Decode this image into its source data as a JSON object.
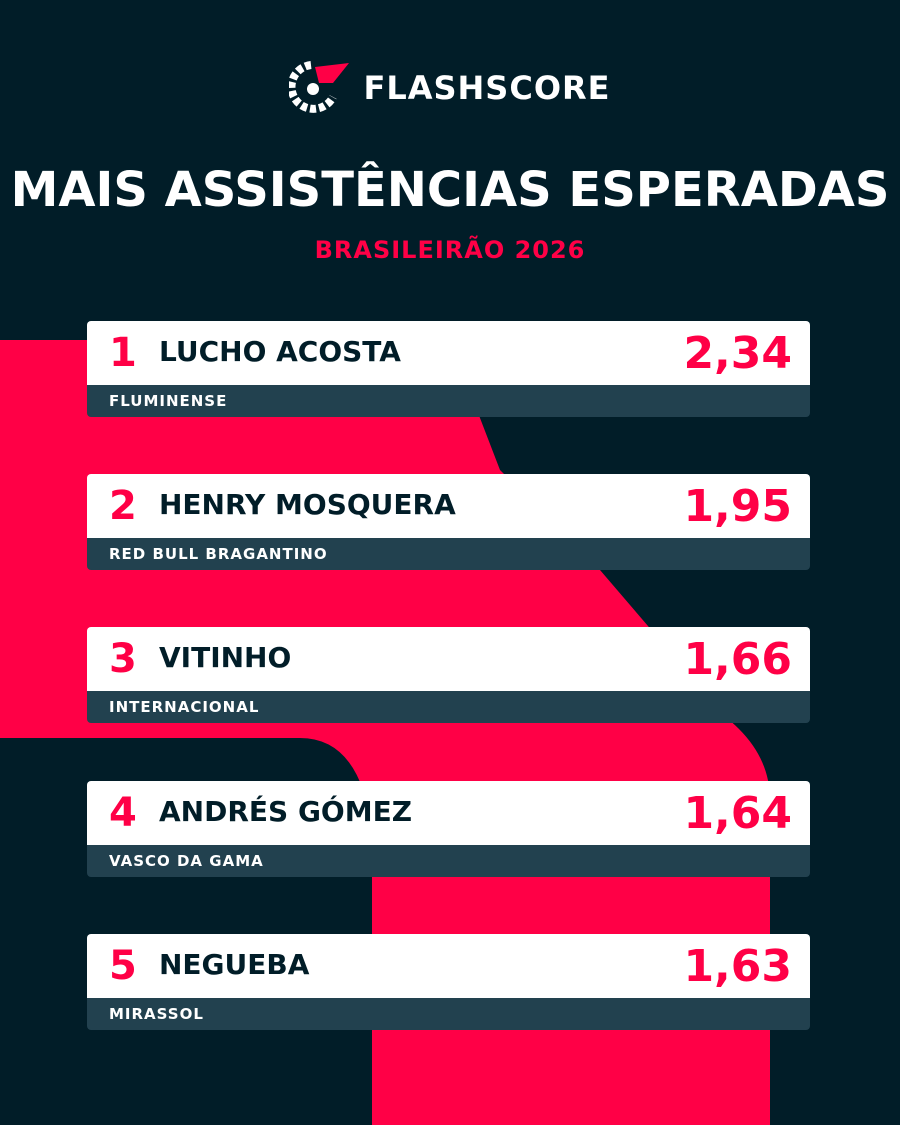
{
  "brand": {
    "logo_text": "FLASHSCORE",
    "logo_icon": "flashscore-logo-icon"
  },
  "header": {
    "title": "MAIS ASSISTÊNCIAS ESPERADAS",
    "subtitle": "BRASILEIRÃO 2026"
  },
  "colors": {
    "background": "#011d28",
    "accent": "#ff0046",
    "card": "#ffffff",
    "team_bar": "#22414f"
  },
  "ranking": [
    {
      "rank": "1",
      "name": "LUCHO ACOSTA",
      "team": "FLUMINENSE",
      "value": "2,34"
    },
    {
      "rank": "2",
      "name": "HENRY MOSQUERA",
      "team": "RED BULL BRAGANTINO",
      "value": "1,95"
    },
    {
      "rank": "3",
      "name": "VITINHO",
      "team": "INTERNACIONAL",
      "value": "1,66"
    },
    {
      "rank": "4",
      "name": "ANDRÉS GÓMEZ",
      "team": "VASCO DA GAMA",
      "value": "1,64"
    },
    {
      "rank": "5",
      "name": "NEGUEBA",
      "team": "MIRASSOL",
      "value": "1,63"
    }
  ]
}
